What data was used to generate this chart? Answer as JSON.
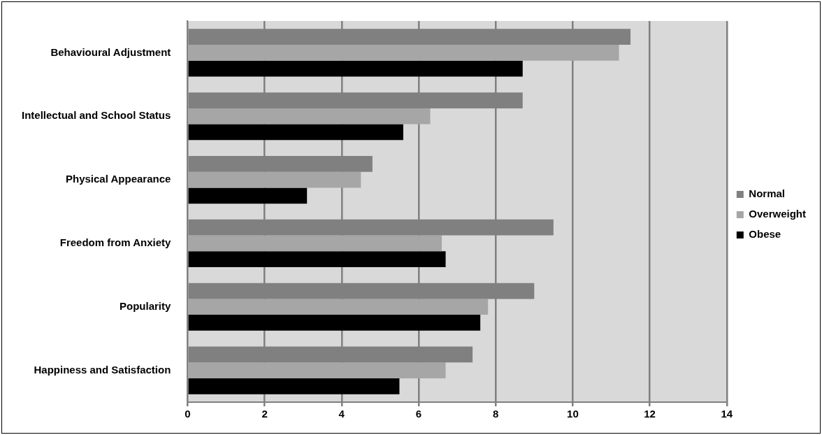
{
  "chart_data": {
    "type": "bar",
    "orientation": "horizontal",
    "categories": [
      "Behavioural Adjustment",
      "Intellectual and School Status",
      "Physical Appearance",
      "Freedom from Anxiety",
      "Popularity",
      "Happiness and Satisfaction"
    ],
    "series": [
      {
        "name": "Normal",
        "color": "#808080",
        "values": [
          11.5,
          8.7,
          4.8,
          9.5,
          9.0,
          7.4
        ]
      },
      {
        "name": "Overweight",
        "color": "#a6a6a6",
        "values": [
          11.2,
          6.3,
          4.5,
          6.6,
          7.8,
          6.7
        ]
      },
      {
        "name": "Obese",
        "color": "#000000",
        "values": [
          8.7,
          5.6,
          3.1,
          6.7,
          7.6,
          5.5
        ]
      }
    ],
    "xlim": [
      0,
      14
    ],
    "xticks": [
      0,
      2,
      4,
      6,
      8,
      10,
      12,
      14
    ],
    "grid": "x",
    "legend": "right"
  }
}
